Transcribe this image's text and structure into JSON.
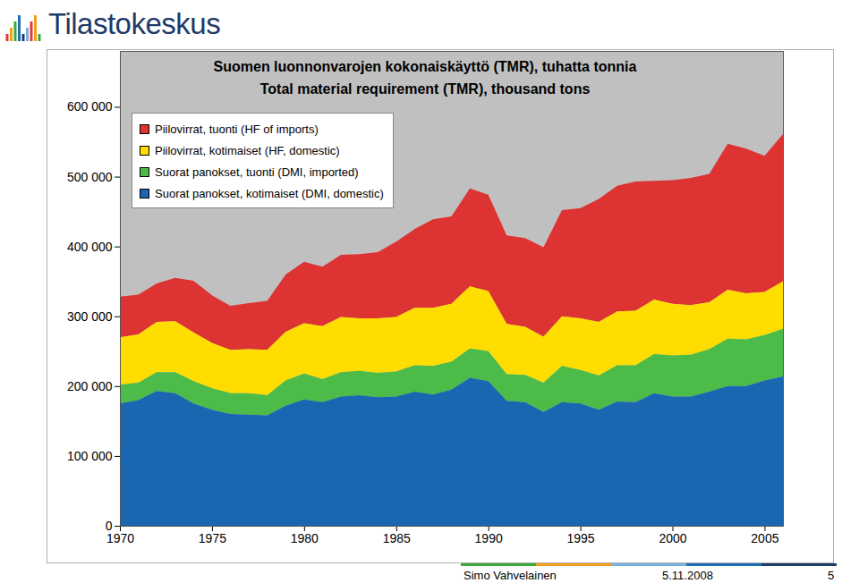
{
  "logo": "Tilastokeskus",
  "footer": {
    "author": "Simo Vahvelainen",
    "date": "5.11.2008",
    "page": 5
  },
  "chart_data": {
    "type": "area",
    "stacked": true,
    "title": "Suomen luonnonvarojen kokonaiskäyttö (TMR), tuhatta tonnia",
    "subtitle": "Total material requirement (TMR), thousand tons",
    "x": [
      1970,
      1971,
      1972,
      1973,
      1974,
      1975,
      1976,
      1977,
      1978,
      1979,
      1980,
      1981,
      1982,
      1983,
      1984,
      1985,
      1986,
      1987,
      1988,
      1989,
      1990,
      1991,
      1992,
      1993,
      1994,
      1995,
      1996,
      1997,
      1998,
      1999,
      2000,
      2001,
      2002,
      2003,
      2004,
      2005,
      2006
    ],
    "xlim": [
      1970,
      2006
    ],
    "xticks": [
      1970,
      1975,
      1980,
      1985,
      1990,
      1995,
      2000,
      2005
    ],
    "ylim": [
      0,
      680000
    ],
    "yticks": [
      0,
      {
        "value": 100000,
        "label": "100 000"
      },
      {
        "value": 200000,
        "label": "200 000"
      },
      {
        "value": 300000,
        "label": "300 000"
      },
      {
        "value": 400000,
        "label": "400 000"
      },
      {
        "value": 500000,
        "label": "500 000"
      },
      {
        "value": 600000,
        "label": "600 000"
      }
    ],
    "grid": false,
    "legend": "top-left",
    "series": [
      {
        "name": "Piilovirrat, tuonti (HF of imports)",
        "color": "#dd3333",
        "values": [
          58000,
          57000,
          55000,
          62000,
          74000,
          68000,
          63000,
          66000,
          70000,
          82000,
          88000,
          85000,
          89000,
          92000,
          95000,
          108000,
          113000,
          127000,
          125000,
          140000,
          138000,
          127000,
          127000,
          128000,
          152000,
          158000,
          176000,
          180000,
          185000,
          170000,
          177000,
          182000,
          184000,
          209000,
          207000,
          195000,
          211000
        ]
      },
      {
        "name": "Piilovirrat, kotimaiset (HF, domestic)",
        "color": "#ffdd00",
        "values": [
          68000,
          69000,
          72000,
          73000,
          70000,
          65000,
          62000,
          63000,
          65000,
          70000,
          72000,
          76000,
          79000,
          75000,
          78000,
          78000,
          82000,
          83000,
          83000,
          89000,
          86000,
          72000,
          69000,
          66000,
          71000,
          74000,
          77000,
          77000,
          78000,
          78000,
          74000,
          71000,
          67000,
          70000,
          66000,
          62000,
          68000
        ]
      },
      {
        "name": "Suorat panokset, tuonti (DMI, imported)",
        "color": "#4cbb47",
        "values": [
          27000,
          25000,
          27000,
          30000,
          32000,
          31000,
          30000,
          31000,
          29000,
          36000,
          37000,
          33000,
          35000,
          35000,
          35000,
          36000,
          38000,
          41000,
          40000,
          42000,
          43000,
          38000,
          39000,
          42000,
          52000,
          48000,
          49000,
          52000,
          53000,
          56000,
          59000,
          60000,
          61000,
          68000,
          67000,
          65000,
          68000
        ]
      },
      {
        "name": "Suorat panokset, kotimaiset (DMI, domestic)",
        "color": "#1a66b0",
        "values": [
          175000,
          180000,
          193000,
          190000,
          175000,
          166000,
          160000,
          159000,
          158000,
          172000,
          181000,
          177000,
          185000,
          187000,
          184000,
          185000,
          192000,
          188000,
          195000,
          212000,
          207000,
          179000,
          177000,
          163000,
          177000,
          175000,
          166000,
          178000,
          177000,
          190000,
          185000,
          185000,
          192000,
          200000,
          200000,
          208000,
          214000
        ]
      }
    ]
  }
}
